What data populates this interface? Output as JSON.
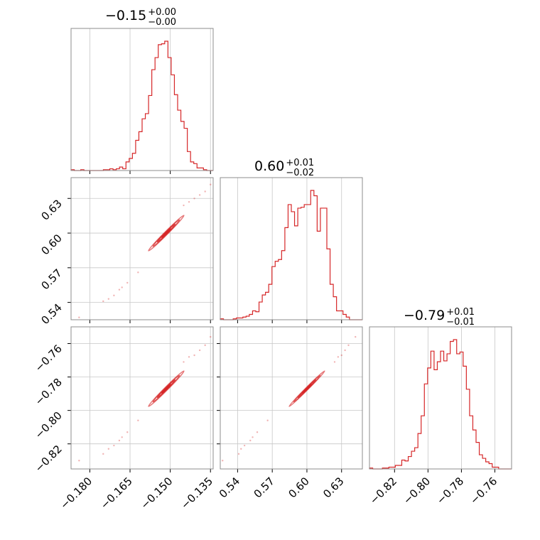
{
  "chart_data": {
    "type": "corner",
    "color": "#d62728",
    "grid": true,
    "parameters": [
      {
        "title_value": "−0.15",
        "title_plus": "+0.00",
        "title_minus": "−0.00",
        "range": [
          -0.187,
          -0.134
        ],
        "median": -0.1515,
        "ticks": [
          -0.18,
          -0.165,
          -0.15,
          -0.135
        ],
        "tick_labels": [
          "−0.180",
          "−0.165",
          "−0.150",
          "−0.135"
        ]
      },
      {
        "title_value": "0.60",
        "title_plus": "+0.01",
        "title_minus": "−0.02",
        "range": [
          0.525,
          0.648
        ],
        "median": 0.6,
        "ticks": [
          0.54,
          0.57,
          0.6,
          0.63
        ],
        "tick_labels": [
          "0.54",
          "0.57",
          "0.60",
          "0.63"
        ]
      },
      {
        "title_value": "−0.79",
        "title_plus": "+0.01",
        "title_minus": "−0.01",
        "range": [
          -0.835,
          -0.75
        ],
        "median": -0.787,
        "ticks": [
          -0.82,
          -0.8,
          -0.78,
          -0.76
        ],
        "tick_labels": [
          "−0.82",
          "−0.80",
          "−0.78",
          "−0.76"
        ]
      }
    ],
    "histograms": [
      [
        1,
        0,
        0,
        1,
        0,
        0,
        0,
        0,
        0,
        0,
        1,
        1,
        2,
        1,
        2,
        4,
        2,
        10,
        14,
        20,
        35,
        45,
        60,
        66,
        87,
        117,
        131,
        146,
        147,
        150,
        131,
        111,
        88,
        70,
        57,
        49,
        22,
        10,
        8,
        3,
        3,
        1,
        0,
        0
      ],
      [
        1,
        0,
        0,
        0,
        1,
        2,
        2,
        3,
        4,
        6,
        10,
        9,
        20,
        28,
        31,
        40,
        60,
        66,
        68,
        78,
        104,
        130,
        122,
        106,
        126,
        127,
        130,
        130,
        146,
        140,
        100,
        126,
        126,
        80,
        40,
        26,
        10,
        10,
        6,
        3,
        0,
        0,
        0,
        0
      ],
      [
        1,
        0,
        0,
        0,
        1,
        1,
        2,
        2,
        4,
        4,
        10,
        9,
        14,
        20,
        24,
        40,
        60,
        96,
        114,
        133,
        112,
        121,
        133,
        122,
        130,
        144,
        146,
        130,
        132,
        116,
        90,
        60,
        44,
        30,
        16,
        12,
        8,
        6,
        2,
        2,
        0,
        0,
        0,
        0
      ]
    ],
    "pairs": [
      {
        "x_param": 0,
        "y_param": 1,
        "correlation": 0.992
      },
      {
        "x_param": 0,
        "y_param": 2,
        "correlation": 0.992
      },
      {
        "x_param": 1,
        "y_param": 2,
        "correlation": 0.995
      }
    ],
    "contour_levels_sigma": [
      0.5,
      1.0,
      1.5,
      2.0
    ],
    "sample_points": [
      [
        -0.184,
        0.527,
        -0.83
      ],
      [
        -0.175,
        0.541,
        -0.826
      ],
      [
        -0.171,
        0.546,
        -0.821
      ],
      [
        -0.168,
        0.553,
        -0.816
      ],
      [
        -0.166,
        0.557,
        -0.813
      ],
      [
        -0.169,
        0.551,
        -0.818
      ],
      [
        -0.173,
        0.543,
        -0.823
      ],
      [
        -0.162,
        0.566,
        -0.806
      ],
      [
        -0.137,
        0.636,
        -0.761
      ],
      [
        -0.139,
        0.633,
        -0.764
      ],
      [
        -0.141,
        0.63,
        -0.767
      ],
      [
        -0.135,
        0.642,
        -0.756
      ],
      [
        -0.145,
        0.624,
        -0.771
      ],
      [
        -0.143,
        0.627,
        -0.768
      ]
    ]
  }
}
